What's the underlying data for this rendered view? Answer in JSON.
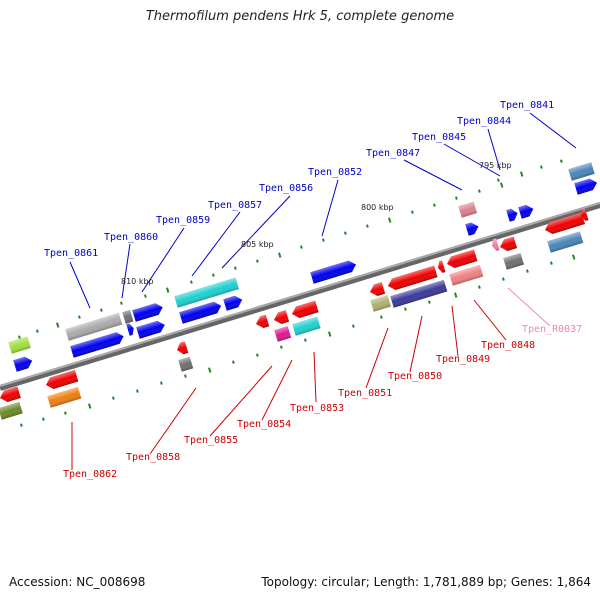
{
  "title": "Thermofilum pendens Hrk 5, complete genome",
  "footer": {
    "accession": "Accession: NC_008698",
    "stats": "Topology: circular; Length: 1,781,889 bp; Genes: 1,864"
  },
  "colors": {
    "backbone": "#808080",
    "label_forward": "#0000cc",
    "label_reverse": "#cc0000",
    "label_rna": "#ee88aa",
    "tick": "#228822"
  },
  "scale_labels": [
    "795 kbp",
    "800 kbp",
    "805 kbp",
    "810 kbp"
  ],
  "forward_labels": [
    "Tpen_0841",
    "Tpen_0844",
    "Tpen_0845",
    "Tpen_0847",
    "Tpen_0852",
    "Tpen_0856",
    "Tpen_0857",
    "Tpen_0859",
    "Tpen_0860",
    "Tpen_0861"
  ],
  "reverse_labels": [
    "Tpen_0862",
    "Tpen_0858",
    "Tpen_0855",
    "Tpen_0854",
    "Tpen_0853",
    "Tpen_0851",
    "Tpen_0850",
    "Tpen_0849",
    "Tpen_0848",
    "Tpen_R0037"
  ]
}
